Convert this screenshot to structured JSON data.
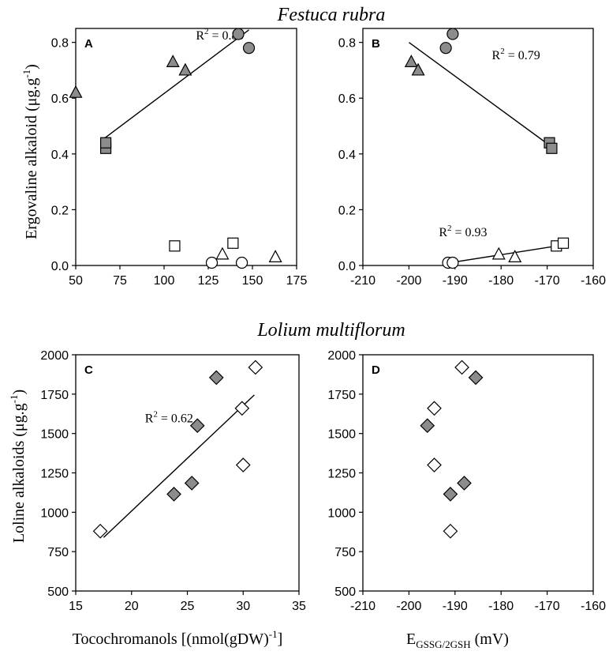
{
  "figure": {
    "top_species": "Festuca rubra",
    "bottom_species": "Lolium multiflorum",
    "top_ylabel": {
      "text": "Ergovaline alkaloid (μg.g",
      "sup": "-1",
      "close": ")"
    },
    "bottom_ylabel": {
      "text": "Loline alkaloids (μg.g",
      "sup": "-1",
      "close": ")"
    },
    "bottom_xlabel_left": {
      "text": "Tocochromanols [(nmol(gDW)",
      "sup": "-1",
      "close": "]"
    },
    "bottom_xlabel_right": {
      "text": "E",
      "sub": "GSSG/2GSH",
      "close": " (mV)"
    }
  },
  "chart_data": [
    {
      "panel": "A",
      "type": "scatter",
      "title": "",
      "xlim": [
        50,
        175
      ],
      "ylim": [
        0,
        0.85
      ],
      "xticks": [
        50,
        75,
        100,
        125,
        150,
        175
      ],
      "yticks": [
        0.0,
        0.2,
        0.4,
        0.6,
        0.8
      ],
      "ytick_labels": [
        "0.0",
        "0.2",
        "0.4",
        "0.6",
        "0.8"
      ],
      "grid": false,
      "series": [
        {
          "marker": "triangle",
          "fill": "#8c8c8c",
          "x": [
            50,
            105,
            112
          ],
          "y": [
            0.62,
            0.73,
            0.7
          ]
        },
        {
          "marker": "square",
          "fill": "#8c8c8c",
          "x": [
            67,
            67
          ],
          "y": [
            0.42,
            0.44
          ]
        },
        {
          "marker": "circle",
          "fill": "#8c8c8c",
          "x": [
            142,
            148
          ],
          "y": [
            0.83,
            0.78
          ]
        },
        {
          "marker": "square",
          "fill": "#ffffff",
          "x": [
            106,
            139
          ],
          "y": [
            0.07,
            0.08
          ]
        },
        {
          "marker": "circle",
          "fill": "#ffffff",
          "x": [
            127,
            144
          ],
          "y": [
            0.01,
            0.01
          ]
        },
        {
          "marker": "triangle",
          "fill": "#ffffff",
          "x": [
            133,
            163
          ],
          "y": [
            0.04,
            0.03
          ]
        }
      ],
      "fits": [
        {
          "x": [
            66,
            148
          ],
          "y": [
            0.455,
            0.845
          ],
          "label": "R",
          "label_sup": "2",
          "label_tail": " = 0.89",
          "label_x": 118,
          "label_y": 0.81
        }
      ]
    },
    {
      "panel": "B",
      "type": "scatter",
      "title": "",
      "xlim": [
        -210,
        -160
      ],
      "ylim": [
        0,
        0.85
      ],
      "xticks": [
        -210,
        -200,
        -190,
        -180,
        -170,
        -160
      ],
      "yticks": [
        0.0,
        0.2,
        0.4,
        0.6,
        0.8
      ],
      "ytick_labels": [
        "0.0",
        "0.2",
        "0.4",
        "0.6",
        "0.8"
      ],
      "grid": false,
      "series": [
        {
          "marker": "triangle",
          "fill": "#8c8c8c",
          "x": [
            -199.5,
            -198
          ],
          "y": [
            0.73,
            0.7
          ]
        },
        {
          "marker": "circle",
          "fill": "#8c8c8c",
          "x": [
            -192,
            -190.5
          ],
          "y": [
            0.78,
            0.83
          ]
        },
        {
          "marker": "square",
          "fill": "#8c8c8c",
          "x": [
            -169.5,
            -169
          ],
          "y": [
            0.44,
            0.42
          ]
        },
        {
          "marker": "circle",
          "fill": "#ffffff",
          "x": [
            -191.5,
            -190.5
          ],
          "y": [
            0.01,
            0.01
          ]
        },
        {
          "marker": "triangle",
          "fill": "#ffffff",
          "x": [
            -180.5,
            -177
          ],
          "y": [
            0.04,
            0.03
          ]
        },
        {
          "marker": "square",
          "fill": "#ffffff",
          "x": [
            -168,
            -166.5
          ],
          "y": [
            0.07,
            0.08
          ]
        }
      ],
      "fits": [
        {
          "x": [
            -200,
            -169
          ],
          "y": [
            0.8,
            0.425
          ],
          "label": "R",
          "label_sup": "2",
          "label_tail": " = 0.79",
          "label_x": -182,
          "label_y": 0.74
        },
        {
          "x": [
            -191,
            -166
          ],
          "y": [
            0.01,
            0.075
          ],
          "label": "R",
          "label_sup": "2",
          "label_tail": " = 0.93",
          "label_x": -193.5,
          "label_y": 0.105
        }
      ]
    },
    {
      "panel": "C",
      "type": "scatter",
      "title": "",
      "xlim": [
        15,
        35
      ],
      "ylim": [
        500,
        2000
      ],
      "xticks": [
        15,
        20,
        25,
        30,
        35
      ],
      "yticks": [
        500,
        750,
        1000,
        1250,
        1500,
        1750,
        2000
      ],
      "ytick_labels": [
        "500",
        "750",
        "1000",
        "1250",
        "1500",
        "1750",
        "2000"
      ],
      "grid": false,
      "series": [
        {
          "marker": "diamond",
          "fill": "#ffffff",
          "x": [
            17.2,
            29.9,
            30.0,
            31.1
          ],
          "y": [
            880,
            1660,
            1300,
            1920
          ]
        },
        {
          "marker": "diamond",
          "fill": "#8c8c8c",
          "x": [
            23.8,
            25.4,
            25.9,
            27.6
          ],
          "y": [
            1115,
            1185,
            1550,
            1855
          ]
        }
      ],
      "fits": [
        {
          "x": [
            17.5,
            31
          ],
          "y": [
            840,
            1745
          ],
          "label": "R",
          "label_sup": "2",
          "label_tail": " = 0.62",
          "label_x": 21.2,
          "label_y": 1570
        }
      ]
    },
    {
      "panel": "D",
      "type": "scatter",
      "title": "",
      "xlim": [
        -210,
        -160
      ],
      "ylim": [
        500,
        2000
      ],
      "xticks": [
        -210,
        -200,
        -190,
        -180,
        -170,
        -160
      ],
      "yticks": [
        500,
        750,
        1000,
        1250,
        1500,
        1750,
        2000
      ],
      "ytick_labels": [
        "500",
        "750",
        "1000",
        "1250",
        "1500",
        "1750",
        "2000"
      ],
      "grid": false,
      "series": [
        {
          "marker": "diamond",
          "fill": "#ffffff",
          "x": [
            -188.5,
            -194.5,
            -194.5,
            -191
          ],
          "y": [
            1920,
            1660,
            1300,
            880
          ]
        },
        {
          "marker": "diamond",
          "fill": "#8c8c8c",
          "x": [
            -185.5,
            -196,
            -188,
            -191
          ],
          "y": [
            1855,
            1550,
            1185,
            1115
          ]
        }
      ],
      "fits": []
    }
  ]
}
